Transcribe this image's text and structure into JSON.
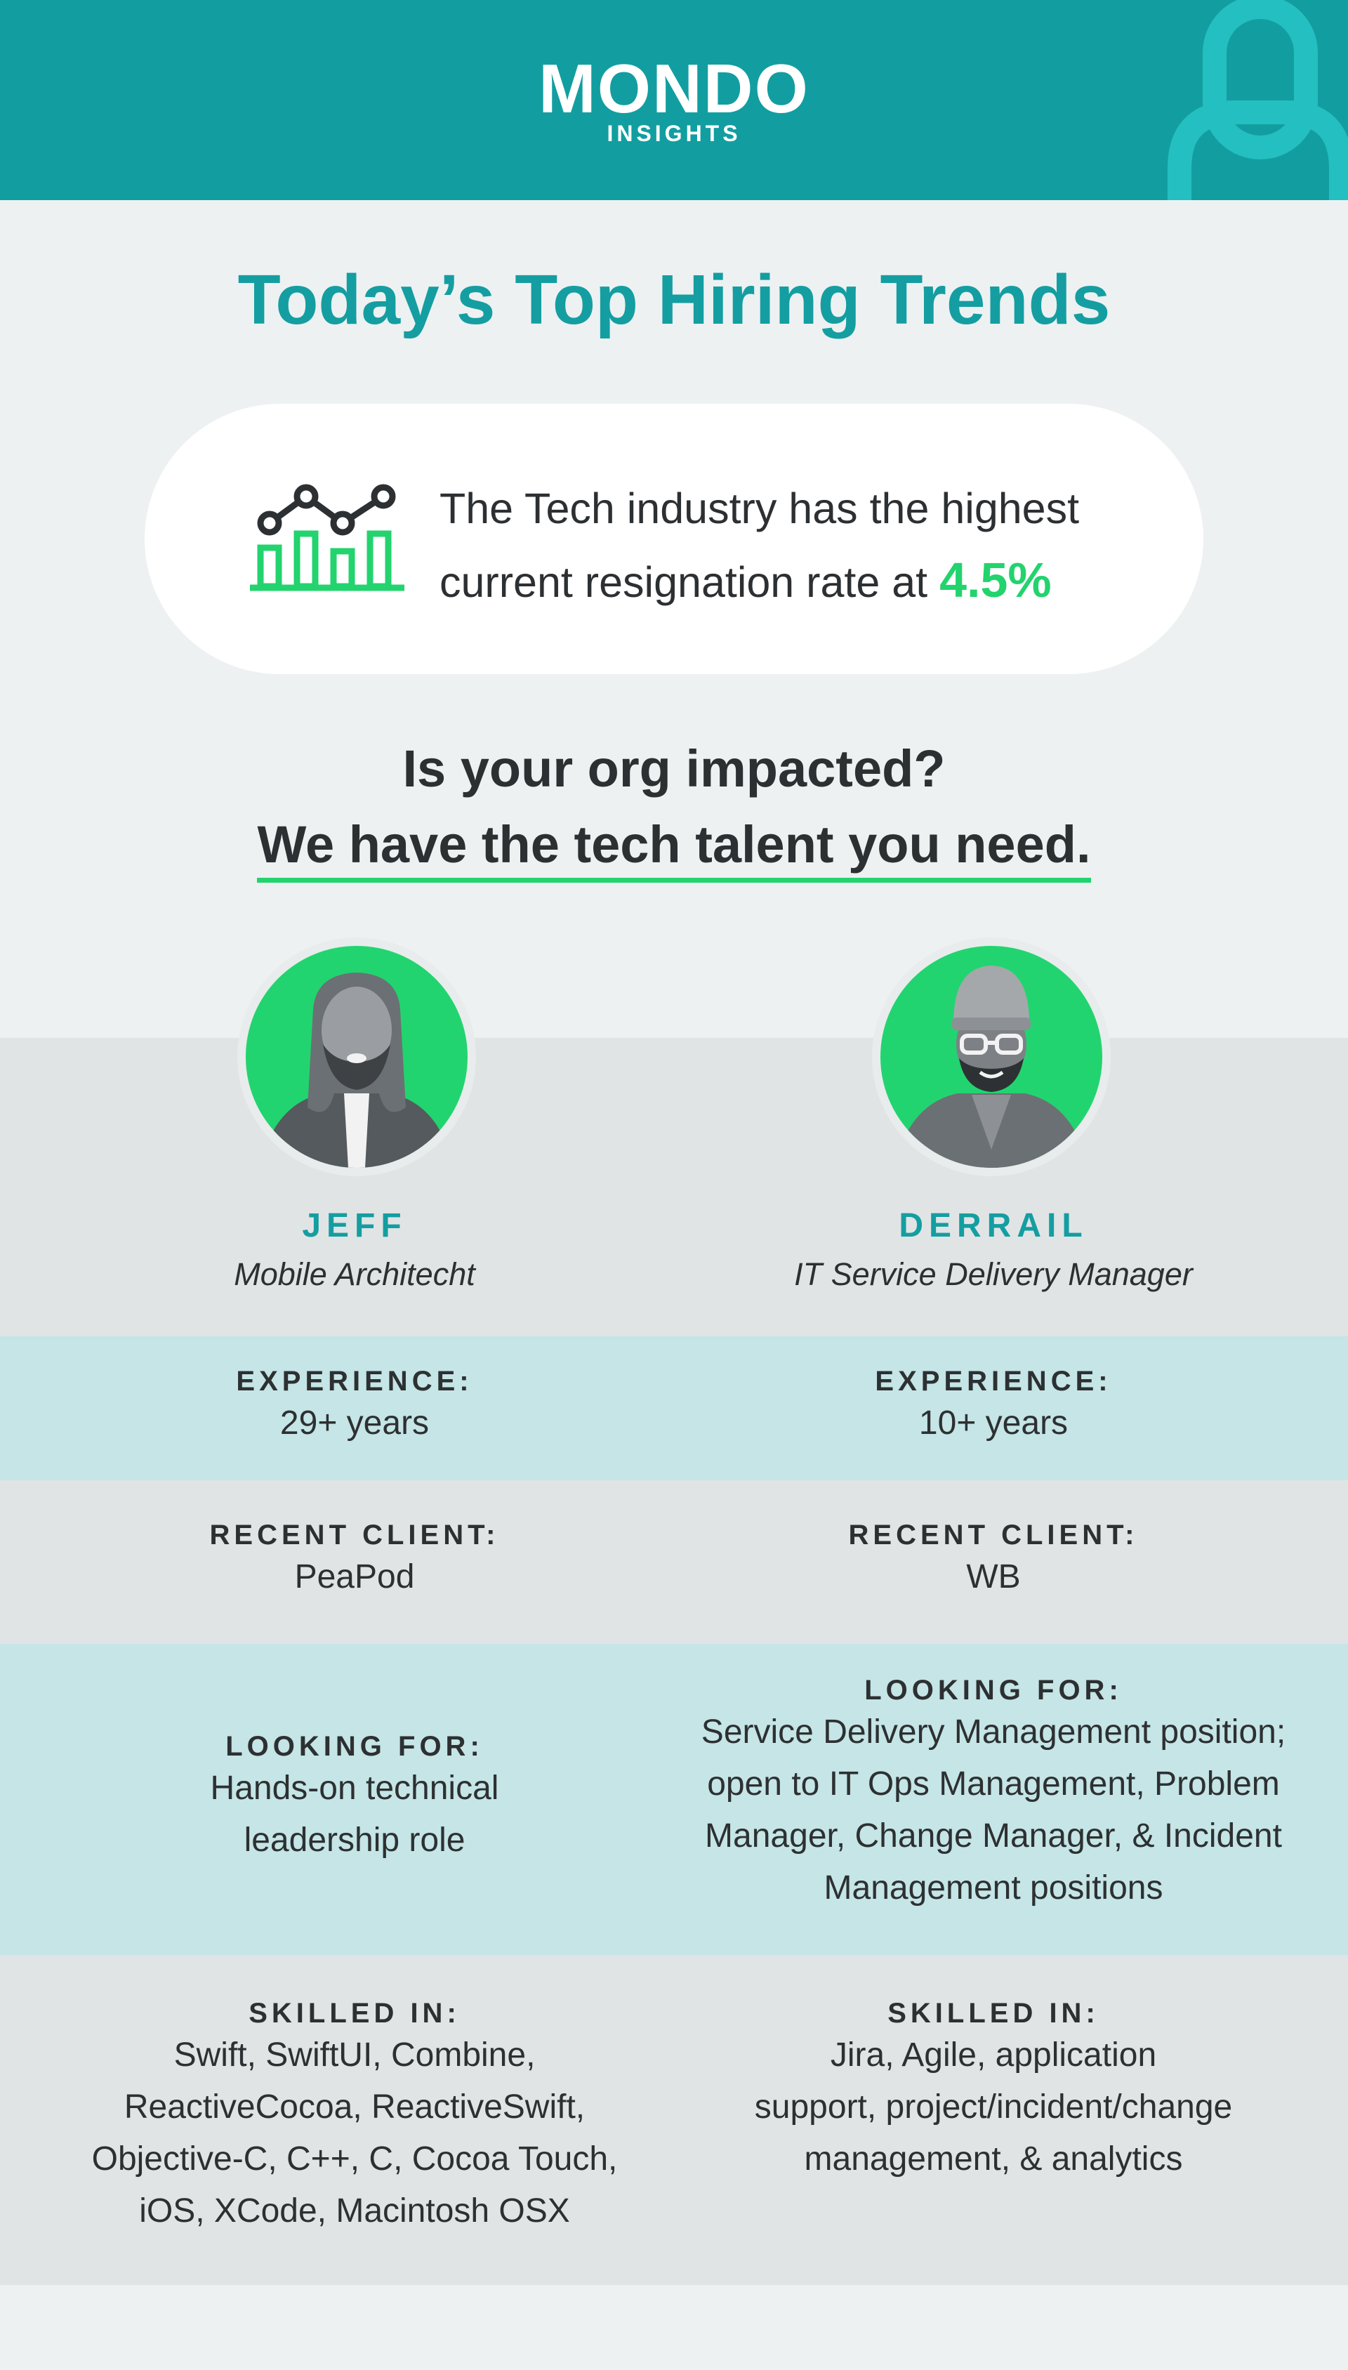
{
  "header": {
    "brand": "MONDO",
    "subbrand": "INSIGHTS"
  },
  "title": "Today’s Top Hiring Trends",
  "stat": {
    "line1": "The Tech industry has the highest",
    "line2": "current resignation rate at",
    "rate": "4.5%",
    "icon": "chart-icon"
  },
  "question": {
    "line1": "Is your org impacted?",
    "line2": "We have the tech talent you need."
  },
  "labels": {
    "experience": "EXPERIENCE:",
    "recent_client": "RECENT CLIENT:",
    "looking_for": "LOOKING FOR:",
    "skilled_in": "SKILLED IN:"
  },
  "candidates": [
    {
      "name": "JEFF",
      "role": "Mobile Architecht",
      "experience": "29+ years",
      "client": "PeaPod",
      "looking_for": [
        "Hands-on technical",
        "leadership role"
      ],
      "skills": [
        "Swift, SwiftUI, Combine,",
        "ReactiveCocoa, ReactiveSwift,",
        "Objective-C, C++, C, Cocoa Touch,",
        "iOS, XCode, Macintosh OSX"
      ]
    },
    {
      "name": "DERRAIL",
      "role": "IT Service Delivery Manager",
      "experience": "10+ years",
      "client": "WB",
      "looking_for": [
        "Service Delivery Management position;",
        "open to IT Ops Management, Problem",
        "Manager, Change Manager, & Incident",
        "Management positions"
      ],
      "skills": [
        "Jira, Agile, application",
        "support, project/incident/change",
        "management, & analytics"
      ]
    }
  ],
  "colors": {
    "teal": "#129ea0",
    "green": "#22d36e",
    "dark": "#2d3032"
  }
}
